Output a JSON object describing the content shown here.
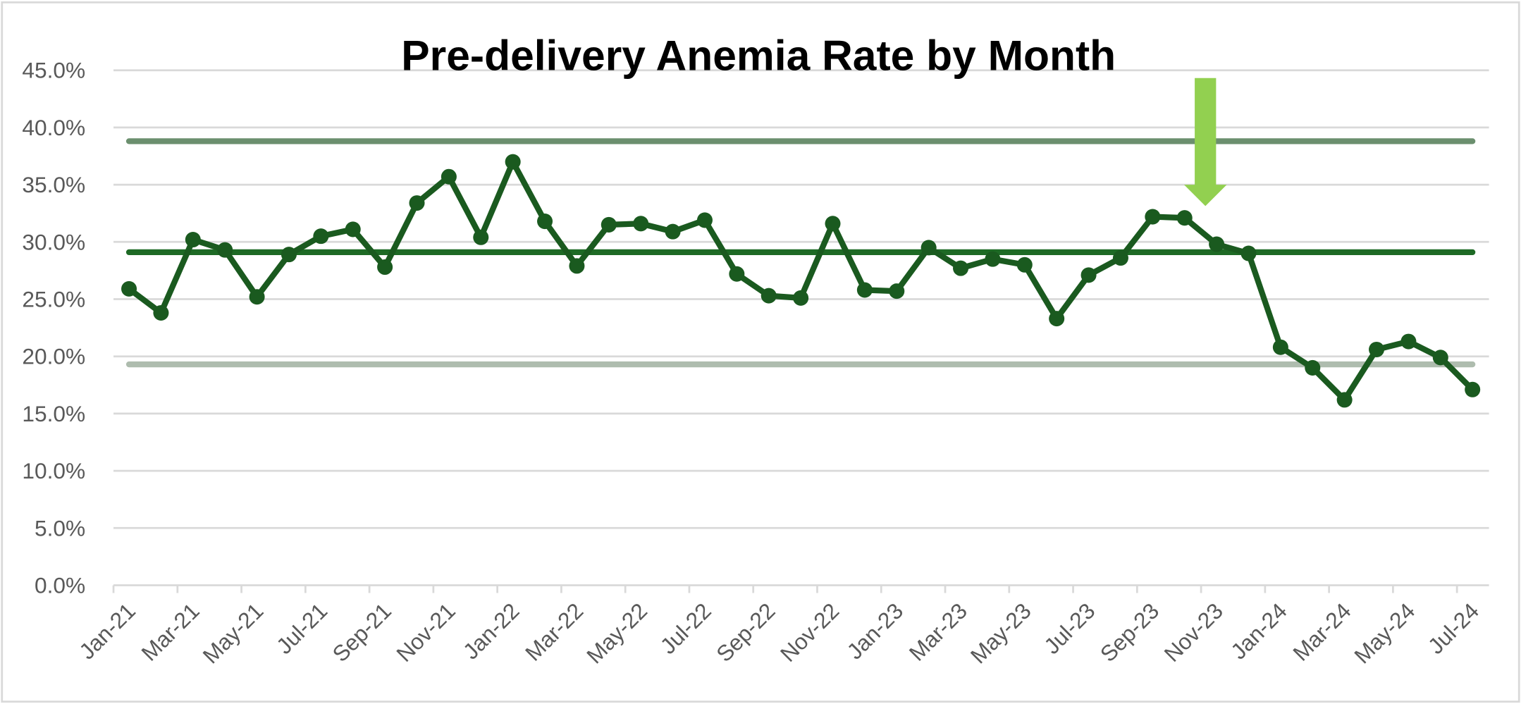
{
  "chart_data": {
    "type": "line",
    "title": "Pre-delivery Anemia Rate by Month",
    "xlabel": "",
    "ylabel": "",
    "ylim": [
      0,
      45
    ],
    "y_ticks": [
      "0.0%",
      "5.0%",
      "10.0%",
      "15.0%",
      "20.0%",
      "25.0%",
      "30.0%",
      "35.0%",
      "40.0%",
      "45.0%"
    ],
    "y_tick_values": [
      0,
      5,
      10,
      15,
      20,
      25,
      30,
      35,
      40,
      45
    ],
    "grid": true,
    "legend": "none",
    "categories": [
      "Jan-21",
      "Feb-21",
      "Mar-21",
      "Apr-21",
      "May-21",
      "Jun-21",
      "Jul-21",
      "Aug-21",
      "Sep-21",
      "Oct-21",
      "Nov-21",
      "Dec-21",
      "Jan-22",
      "Feb-22",
      "Mar-22",
      "Apr-22",
      "May-22",
      "Jun-22",
      "Jul-22",
      "Aug-22",
      "Sep-22",
      "Oct-22",
      "Nov-22",
      "Dec-22",
      "Jan-23",
      "Feb-23",
      "Mar-23",
      "Apr-23",
      "May-23",
      "Jun-23",
      "Jul-23",
      "Aug-23",
      "Sep-23",
      "Oct-23",
      "Nov-23",
      "Dec-23",
      "Jan-24",
      "Feb-24",
      "Mar-24",
      "Apr-24",
      "May-24",
      "Jun-24",
      "Jul-24"
    ],
    "x_tick_labels": [
      "Jan-21",
      "Mar-21",
      "May-21",
      "Jul-21",
      "Sep-21",
      "Nov-21",
      "Jan-22",
      "Mar-22",
      "May-22",
      "Jul-22",
      "Sep-22",
      "Nov-22",
      "Jan-23",
      "Mar-23",
      "May-23",
      "Jul-23",
      "Sep-23",
      "Nov-23",
      "Jan-24",
      "Mar-24",
      "May-24",
      "Jul-24"
    ],
    "series": [
      {
        "values": [
          25.9,
          23.8,
          30.2,
          29.3,
          25.2,
          28.9,
          30.5,
          31.1,
          27.8,
          33.4,
          35.7,
          30.4,
          37.0,
          31.8,
          27.9,
          31.5,
          31.6,
          30.9,
          31.9,
          27.2,
          25.3,
          25.1,
          31.6,
          25.8,
          25.7,
          29.5,
          27.7,
          28.5,
          28.0,
          23.3,
          27.1,
          28.6,
          32.2,
          32.1,
          29.8,
          29.0,
          20.8,
          19.0,
          16.2,
          20.6,
          21.3,
          19.9,
          17.1
        ],
        "color": "#1a5a1f"
      }
    ],
    "reference_lines": [
      {
        "role": "upper control limit",
        "value": 38.8,
        "color": "#6b8f6e"
      },
      {
        "role": "center line",
        "value": 29.1,
        "color": "#1e6a25"
      },
      {
        "role": "lower control limit",
        "value": 19.3,
        "color": "#aebcae"
      }
    ],
    "annotation": {
      "type": "down-arrow",
      "near_category": "Nov-23",
      "color": "#92d050"
    }
  }
}
